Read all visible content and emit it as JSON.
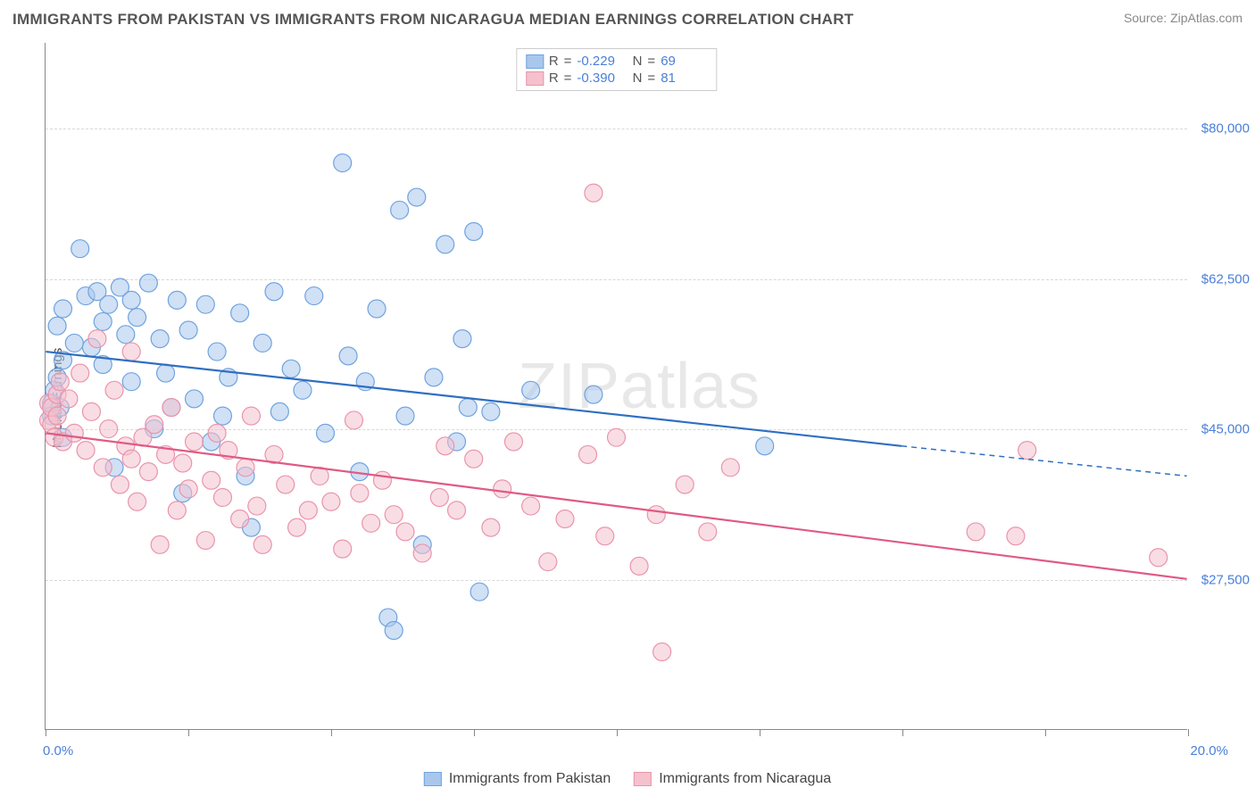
{
  "title": "IMMIGRANTS FROM PAKISTAN VS IMMIGRANTS FROM NICARAGUA MEDIAN EARNINGS CORRELATION CHART",
  "source_prefix": "Source: ",
  "source_site": "ZipAtlas.com",
  "ylabel": "Median Earnings",
  "watermark_a": "ZIP",
  "watermark_b": "atlas",
  "chart": {
    "type": "scatter",
    "background_color": "#ffffff",
    "grid_color": "#d8d8d8",
    "axis_color": "#888888",
    "x_domain": [
      0,
      20
    ],
    "y_domain": [
      10000,
      90000
    ],
    "y_ticks": [
      27500,
      45000,
      62500,
      80000
    ],
    "y_tick_labels": [
      "$27,500",
      "$45,000",
      "$62,500",
      "$80,000"
    ],
    "x_ticks": [
      0,
      2.5,
      5,
      7.5,
      10,
      12.5,
      15,
      17.5,
      20
    ],
    "x_start_label": "0.0%",
    "x_end_label": "20.0%",
    "marker_radius": 10,
    "marker_opacity": 0.55,
    "line_width": 2.2,
    "series": [
      {
        "key": "pakistan",
        "label": "Immigrants from Pakistan",
        "color_fill": "#a9c7ec",
        "color_stroke": "#6fa3de",
        "color_line": "#2f6fc2",
        "R": "-0.229",
        "N": "69",
        "trend": {
          "x1": 0,
          "y1": 54000,
          "x2": 15,
          "y2": 43000,
          "x2_ext": 20,
          "y2_ext": 39500
        },
        "points": [
          [
            0.1,
            48000
          ],
          [
            0.1,
            46500
          ],
          [
            0.15,
            49500
          ],
          [
            0.2,
            51000
          ],
          [
            0.2,
            57000
          ],
          [
            0.25,
            47500
          ],
          [
            0.3,
            53000
          ],
          [
            0.3,
            59000
          ],
          [
            0.3,
            44000
          ],
          [
            0.5,
            55000
          ],
          [
            0.6,
            66000
          ],
          [
            0.7,
            60500
          ],
          [
            0.8,
            54500
          ],
          [
            0.9,
            61000
          ],
          [
            1.0,
            57500
          ],
          [
            1.0,
            52500
          ],
          [
            1.1,
            59500
          ],
          [
            1.2,
            40500
          ],
          [
            1.3,
            61500
          ],
          [
            1.4,
            56000
          ],
          [
            1.5,
            60000
          ],
          [
            1.5,
            50500
          ],
          [
            1.6,
            58000
          ],
          [
            1.8,
            62000
          ],
          [
            1.9,
            45000
          ],
          [
            2.0,
            55500
          ],
          [
            2.1,
            51500
          ],
          [
            2.2,
            47500
          ],
          [
            2.3,
            60000
          ],
          [
            2.4,
            37500
          ],
          [
            2.5,
            56500
          ],
          [
            2.6,
            48500
          ],
          [
            2.8,
            59500
          ],
          [
            2.9,
            43500
          ],
          [
            3.0,
            54000
          ],
          [
            3.1,
            46500
          ],
          [
            3.2,
            51000
          ],
          [
            3.4,
            58500
          ],
          [
            3.5,
            39500
          ],
          [
            3.6,
            33500
          ],
          [
            3.8,
            55000
          ],
          [
            4.0,
            61000
          ],
          [
            4.1,
            47000
          ],
          [
            4.3,
            52000
          ],
          [
            4.5,
            49500
          ],
          [
            4.7,
            60500
          ],
          [
            4.9,
            44500
          ],
          [
            5.2,
            76000
          ],
          [
            5.3,
            53500
          ],
          [
            5.5,
            40000
          ],
          [
            5.6,
            50500
          ],
          [
            5.8,
            59000
          ],
          [
            6.0,
            23000
          ],
          [
            6.2,
            70500
          ],
          [
            6.3,
            46500
          ],
          [
            6.5,
            72000
          ],
          [
            6.6,
            31500
          ],
          [
            6.8,
            51000
          ],
          [
            7.0,
            66500
          ],
          [
            7.2,
            43500
          ],
          [
            7.3,
            55500
          ],
          [
            7.4,
            47500
          ],
          [
            7.5,
            68000
          ],
          [
            7.6,
            26000
          ],
          [
            7.8,
            47000
          ],
          [
            8.5,
            49500
          ],
          [
            9.6,
            49000
          ],
          [
            12.6,
            43000
          ],
          [
            6.1,
            21500
          ]
        ]
      },
      {
        "key": "nicaragua",
        "label": "Immigrants from Nicaragua",
        "color_fill": "#f4c1cd",
        "color_stroke": "#ea94ab",
        "color_line": "#e05a84",
        "R": "-0.390",
        "N": "81",
        "trend": {
          "x1": 0,
          "y1": 44500,
          "x2": 20,
          "y2": 27500
        },
        "points": [
          [
            0.05,
            46000
          ],
          [
            0.05,
            48000
          ],
          [
            0.1,
            45500
          ],
          [
            0.1,
            47500
          ],
          [
            0.15,
            44000
          ],
          [
            0.2,
            49000
          ],
          [
            0.2,
            46500
          ],
          [
            0.25,
            50500
          ],
          [
            0.3,
            43500
          ],
          [
            0.4,
            48500
          ],
          [
            0.5,
            44500
          ],
          [
            0.6,
            51500
          ],
          [
            0.7,
            42500
          ],
          [
            0.8,
            47000
          ],
          [
            0.9,
            55500
          ],
          [
            1.0,
            40500
          ],
          [
            1.1,
            45000
          ],
          [
            1.2,
            49500
          ],
          [
            1.3,
            38500
          ],
          [
            1.4,
            43000
          ],
          [
            1.5,
            41500
          ],
          [
            1.5,
            54000
          ],
          [
            1.6,
            36500
          ],
          [
            1.7,
            44000
          ],
          [
            1.8,
            40000
          ],
          [
            1.9,
            45500
          ],
          [
            2.0,
            31500
          ],
          [
            2.1,
            42000
          ],
          [
            2.2,
            47500
          ],
          [
            2.3,
            35500
          ],
          [
            2.4,
            41000
          ],
          [
            2.5,
            38000
          ],
          [
            2.6,
            43500
          ],
          [
            2.8,
            32000
          ],
          [
            2.9,
            39000
          ],
          [
            3.0,
            44500
          ],
          [
            3.1,
            37000
          ],
          [
            3.2,
            42500
          ],
          [
            3.4,
            34500
          ],
          [
            3.5,
            40500
          ],
          [
            3.7,
            36000
          ],
          [
            3.8,
            31500
          ],
          [
            4.0,
            42000
          ],
          [
            4.2,
            38500
          ],
          [
            4.4,
            33500
          ],
          [
            4.6,
            35500
          ],
          [
            4.8,
            39500
          ],
          [
            5.0,
            36500
          ],
          [
            5.2,
            31000
          ],
          [
            5.5,
            37500
          ],
          [
            5.7,
            34000
          ],
          [
            5.9,
            39000
          ],
          [
            6.1,
            35000
          ],
          [
            6.3,
            33000
          ],
          [
            6.6,
            30500
          ],
          [
            6.9,
            37000
          ],
          [
            7.0,
            43000
          ],
          [
            7.2,
            35500
          ],
          [
            7.5,
            41500
          ],
          [
            7.8,
            33500
          ],
          [
            8.0,
            38000
          ],
          [
            8.2,
            43500
          ],
          [
            8.5,
            36000
          ],
          [
            8.8,
            29500
          ],
          [
            9.1,
            34500
          ],
          [
            9.5,
            42000
          ],
          [
            9.6,
            72500
          ],
          [
            9.8,
            32500
          ],
          [
            10.0,
            44000
          ],
          [
            10.4,
            29000
          ],
          [
            10.7,
            35000
          ],
          [
            10.8,
            19000
          ],
          [
            11.2,
            38500
          ],
          [
            11.6,
            33000
          ],
          [
            12.0,
            40500
          ],
          [
            16.3,
            33000
          ],
          [
            17.0,
            32500
          ],
          [
            17.2,
            42500
          ],
          [
            19.5,
            30000
          ],
          [
            3.6,
            46500
          ],
          [
            5.4,
            46000
          ]
        ]
      }
    ]
  }
}
